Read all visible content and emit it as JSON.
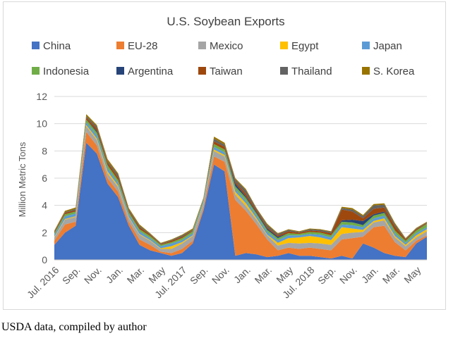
{
  "source_note": "USDA data, compiled by author",
  "chart_data": {
    "type": "area",
    "stacked": true,
    "title": "U.S. Soybean Exports",
    "xlabel": "",
    "ylabel": "Million Metric Tons",
    "ylim": [
      0,
      12
    ],
    "yticks": [
      0,
      2,
      4,
      6,
      8,
      10,
      12
    ],
    "grid": true,
    "legend_position": "top",
    "x": [
      "Jul. 2016",
      "Aug. 2016",
      "Sep. 2016",
      "Oct. 2016",
      "Nov. 2016",
      "Dec. 2016",
      "Jan. 2017",
      "Feb. 2017",
      "Mar. 2017",
      "Apr. 2017",
      "May 2017",
      "Jun. 2017",
      "Jul. 2017",
      "Aug. 2017",
      "Sep. 2017",
      "Oct. 2017",
      "Nov. 2017",
      "Dec. 2017",
      "Jan. 2018",
      "Feb. 2018",
      "Mar. 2018",
      "Apr. 2018",
      "May 2018",
      "Jun. 2018",
      "Jul. 2018",
      "Aug. 2018",
      "Sep. 2018",
      "Oct. 2018",
      "Nov. 2018",
      "Dec. 2018",
      "Jan. 2019",
      "Feb. 2019",
      "Mar. 2019",
      "Apr. 2019",
      "May 2019",
      "Jun. 2019"
    ],
    "xtick_labels": [
      {
        "index": 0,
        "label": "Jul. 2016"
      },
      {
        "index": 2,
        "label": "Sep."
      },
      {
        "index": 4,
        "label": "Nov."
      },
      {
        "index": 6,
        "label": "Jan."
      },
      {
        "index": 8,
        "label": "Mar."
      },
      {
        "index": 10,
        "label": "May"
      },
      {
        "index": 12,
        "label": "Jul. 2017"
      },
      {
        "index": 14,
        "label": "Sep."
      },
      {
        "index": 16,
        "label": "Nov."
      },
      {
        "index": 18,
        "label": "Jan."
      },
      {
        "index": 20,
        "label": "Mar."
      },
      {
        "index": 22,
        "label": "May"
      },
      {
        "index": 24,
        "label": "Jul. 2018"
      },
      {
        "index": 26,
        "label": "Sep."
      },
      {
        "index": 28,
        "label": "Nov."
      },
      {
        "index": 30,
        "label": "Jan."
      },
      {
        "index": 32,
        "label": "Mar."
      },
      {
        "index": 34,
        "label": "May"
      }
    ],
    "series": [
      {
        "name": "China",
        "color": "#4472C4",
        "values": [
          1.1,
          2.0,
          2.5,
          8.6,
          7.8,
          5.6,
          4.6,
          2.5,
          1.1,
          0.7,
          0.5,
          0.3,
          0.5,
          1.2,
          3.6,
          7.0,
          6.5,
          0.3,
          0.5,
          0.4,
          0.2,
          0.3,
          0.5,
          0.3,
          0.3,
          0.2,
          0.1,
          0.3,
          0.1,
          1.2,
          0.9,
          0.5,
          0.3,
          0.2,
          1.2,
          1.7
        ]
      },
      {
        "name": "EU-28",
        "color": "#ED7D31",
        "values": [
          0.3,
          0.6,
          0.3,
          0.8,
          0.6,
          0.4,
          0.4,
          0.3,
          0.4,
          0.4,
          0.1,
          0.2,
          0.3,
          0.2,
          0.2,
          0.6,
          0.7,
          4.1,
          3.1,
          2.2,
          1.3,
          0.4,
          0.4,
          0.5,
          0.6,
          0.6,
          0.6,
          1.2,
          1.5,
          0.5,
          1.5,
          2.0,
          1.0,
          0.5,
          0.2,
          0.1
        ]
      },
      {
        "name": "Mexico",
        "color": "#A5A5A5",
        "values": [
          0.25,
          0.35,
          0.35,
          0.4,
          0.4,
          0.35,
          0.35,
          0.3,
          0.35,
          0.3,
          0.2,
          0.3,
          0.4,
          0.35,
          0.3,
          0.4,
          0.4,
          0.4,
          0.35,
          0.35,
          0.3,
          0.35,
          0.35,
          0.4,
          0.35,
          0.4,
          0.4,
          0.4,
          0.4,
          0.35,
          0.35,
          0.4,
          0.35,
          0.3,
          0.25,
          0.3
        ]
      },
      {
        "name": "Egypt",
        "color": "#FFC000",
        "values": [
          0.05,
          0.05,
          0.05,
          0.1,
          0.1,
          0.15,
          0.1,
          0.05,
          0.05,
          0.05,
          0.05,
          0.2,
          0.1,
          0.05,
          0.05,
          0.1,
          0.1,
          0.2,
          0.2,
          0.1,
          0.05,
          0.2,
          0.35,
          0.45,
          0.5,
          0.45,
          0.35,
          0.5,
          0.3,
          0.15,
          0.1,
          0.15,
          0.1,
          0.1,
          0.15,
          0.15
        ]
      },
      {
        "name": "Japan",
        "color": "#5B9BD5",
        "values": [
          0.15,
          0.2,
          0.2,
          0.2,
          0.25,
          0.25,
          0.2,
          0.2,
          0.2,
          0.15,
          0.15,
          0.2,
          0.15,
          0.15,
          0.15,
          0.2,
          0.2,
          0.2,
          0.2,
          0.2,
          0.2,
          0.2,
          0.2,
          0.15,
          0.15,
          0.2,
          0.2,
          0.2,
          0.25,
          0.2,
          0.2,
          0.2,
          0.2,
          0.15,
          0.15,
          0.15
        ]
      },
      {
        "name": "Indonesia",
        "color": "#70AD47",
        "values": [
          0.1,
          0.15,
          0.15,
          0.2,
          0.2,
          0.2,
          0.2,
          0.15,
          0.15,
          0.15,
          0.1,
          0.1,
          0.15,
          0.15,
          0.1,
          0.2,
          0.2,
          0.2,
          0.2,
          0.15,
          0.15,
          0.15,
          0.15,
          0.1,
          0.15,
          0.15,
          0.15,
          0.2,
          0.2,
          0.15,
          0.2,
          0.2,
          0.2,
          0.15,
          0.2,
          0.25
        ]
      },
      {
        "name": "Argentina",
        "color": "#264478",
        "values": [
          0,
          0,
          0,
          0,
          0.1,
          0,
          0,
          0,
          0,
          0,
          0,
          0,
          0,
          0,
          0,
          0,
          0,
          0.2,
          0.1,
          0.1,
          0.1,
          0.1,
          0,
          0,
          0,
          0,
          0,
          0.1,
          0.2,
          0.3,
          0.1,
          0.1,
          0,
          0,
          0,
          0
        ]
      },
      {
        "name": "Taiwan",
        "color": "#9E480E",
        "values": [
          0.1,
          0.1,
          0.1,
          0.15,
          0.2,
          0.2,
          0.2,
          0.1,
          0.15,
          0.1,
          0.05,
          0.1,
          0.1,
          0.05,
          0.05,
          0.2,
          0.2,
          0.15,
          0.2,
          0.15,
          0.1,
          0.1,
          0.15,
          0.1,
          0.1,
          0.1,
          0.15,
          0.8,
          0.6,
          0.2,
          0.4,
          0.3,
          0.3,
          0.1,
          0.1,
          0.05
        ]
      },
      {
        "name": "Thailand",
        "color": "#636363",
        "values": [
          0.05,
          0.05,
          0.1,
          0.1,
          0.15,
          0.1,
          0.2,
          0.1,
          0.1,
          0.05,
          0.05,
          0.05,
          0.1,
          0.05,
          0.05,
          0.2,
          0.15,
          0.15,
          0.25,
          0.1,
          0.15,
          0.1,
          0.1,
          0.05,
          0.1,
          0.1,
          0.1,
          0.1,
          0.15,
          0.15,
          0.25,
          0.2,
          0.15,
          0.05,
          0.05,
          0.05
        ]
      },
      {
        "name": "S. Korea",
        "color": "#997300",
        "values": [
          0.05,
          0.1,
          0.1,
          0.15,
          0.1,
          0.15,
          0.1,
          0.1,
          0.1,
          0.05,
          0.05,
          0.05,
          0.05,
          0.1,
          0.05,
          0.15,
          0.15,
          0.1,
          0.1,
          0.05,
          0.1,
          0.05,
          0.05,
          0.05,
          0.05,
          0.05,
          0.05,
          0.1,
          0.1,
          0.1,
          0.1,
          0.1,
          0.1,
          0.05,
          0.05,
          0.05
        ]
      }
    ]
  }
}
